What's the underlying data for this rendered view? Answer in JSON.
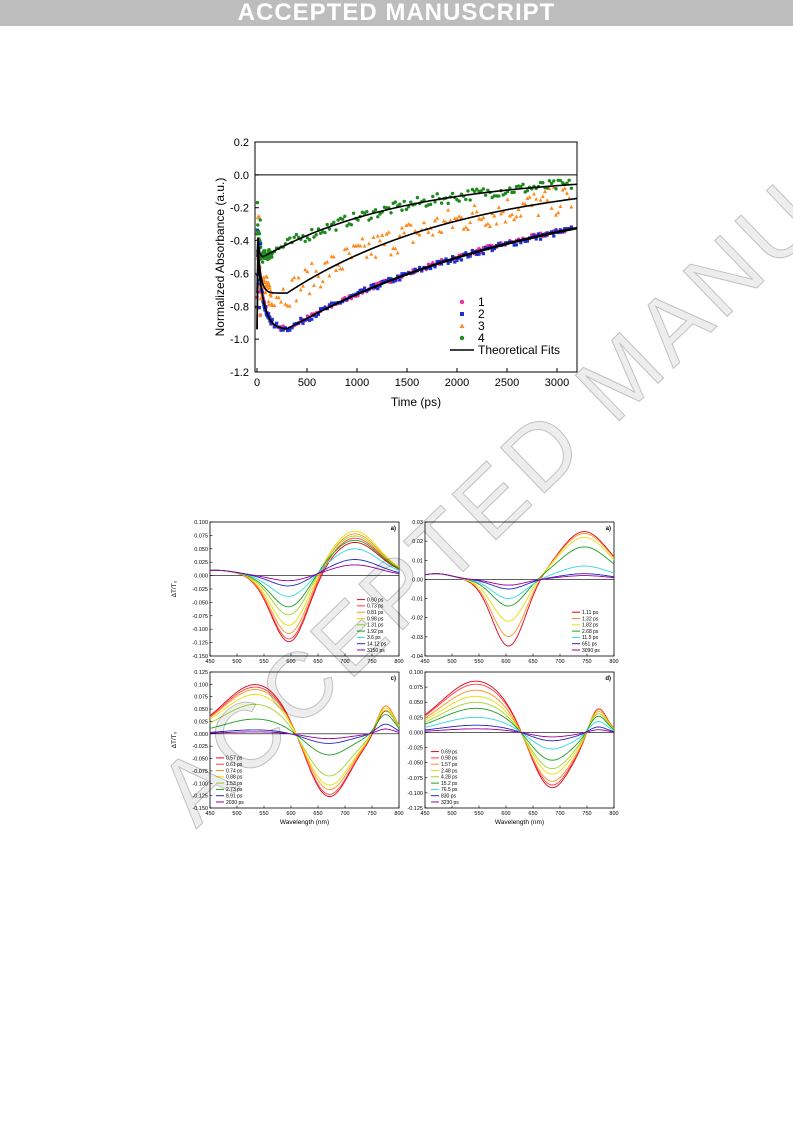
{
  "banner": {
    "text": "ACCEPTED MANUSCRIPT"
  },
  "watermark": {
    "text": "ACCEPTED MANUSCRIPT"
  },
  "chart_data": [
    {
      "id": "main",
      "type": "scatter",
      "xlabel": "Time (ps)",
      "ylabel": "Normalized Absorbance (a.u.)",
      "xlim": [
        -20,
        3200
      ],
      "ylim": [
        -1.2,
        0.2
      ],
      "xticks": [
        0,
        500,
        1000,
        1500,
        2000,
        2500,
        3000
      ],
      "yticks": [
        0.2,
        0.0,
        -0.2,
        -0.4,
        -0.6,
        -0.8,
        -1.0,
        -1.2
      ],
      "ytick_labels": [
        "0.2",
        "0.0",
        "-0.2",
        "-0.4",
        "-0.6",
        "-0.8",
        "-1.0",
        "-1.2"
      ],
      "legend_position": "bottom-right",
      "series": [
        {
          "name": "1",
          "color": "#ee2e9c",
          "marker": "circle",
          "A": 0.94,
          "t0": 60,
          "tmin": 300,
          "rec": 2700,
          "noise": 0.015
        },
        {
          "name": "2",
          "color": "#1f2fd6",
          "marker": "square",
          "A": 0.94,
          "t0": 60,
          "tmin": 300,
          "rec": 2750,
          "noise": 0.02
        },
        {
          "name": "3",
          "color": "#ff8a1e",
          "marker": "triangle",
          "A": 0.72,
          "t0": 30,
          "tmin": 300,
          "rec": 1800,
          "noise": 0.09
        },
        {
          "name": "4",
          "color": "#1e8a1e",
          "marker": "circle",
          "A": 0.5,
          "t0": 12,
          "tmin": 60,
          "rec": 1450,
          "noise": 0.035
        }
      ],
      "fits_label": "Theoretical Fits",
      "fit_color": "#000000"
    },
    {
      "id": "a",
      "type": "line",
      "panel_label": "a)",
      "xlabel": "",
      "ylabel": "ΔT/T₀",
      "xlim": [
        450,
        800
      ],
      "ylim": [
        -0.15,
        0.1
      ],
      "xticks": [
        450,
        500,
        550,
        600,
        650,
        700,
        750,
        800
      ],
      "yticks": [
        0.1,
        0.075,
        0.05,
        0.025,
        0.0,
        -0.025,
        -0.05,
        -0.075,
        -0.1,
        -0.125,
        -0.15
      ],
      "ytick_labels": [
        "0.100",
        "0.075",
        "0.050",
        "0.025",
        "0.000",
        "-0.025",
        "-0.050",
        "-0.075",
        "-0.100",
        "-0.125",
        "-0.150"
      ],
      "gauss": {
        "mu": 597,
        "sigma": 33,
        "mu2": 718,
        "sigma2": 45,
        "base0": 0.01,
        "baseMu": 460,
        "baseSigma": 40
      },
      "legend_position": "bottom-right",
      "series": [
        {
          "name": "0.60 ps",
          "color": "#e0001a",
          "neg": 0.125,
          "pos": 0.062
        },
        {
          "name": "0.73 ps",
          "color": "#ff3a3a",
          "neg": 0.12,
          "pos": 0.07
        },
        {
          "name": "0.81 ps",
          "color": "#ff9020",
          "neg": 0.11,
          "pos": 0.078
        },
        {
          "name": "0.98 ps",
          "color": "#e8e000",
          "neg": 0.095,
          "pos": 0.083
        },
        {
          "name": "1.31 ps",
          "color": "#a2d628",
          "neg": 0.075,
          "pos": 0.074
        },
        {
          "name": "1.92 ps",
          "color": "#1ea01e",
          "neg": 0.06,
          "pos": 0.066
        },
        {
          "name": "3.6 ps",
          "color": "#30d8e0",
          "neg": 0.04,
          "pos": 0.05
        },
        {
          "name": "14.12 ps",
          "color": "#2424c8",
          "neg": 0.02,
          "pos": 0.03
        },
        {
          "name": "3150 ps",
          "color": "#9a009a",
          "neg": 0.01,
          "pos": 0.02
        }
      ]
    },
    {
      "id": "b",
      "type": "line",
      "panel_label": "a)",
      "xlabel": "",
      "ylabel": "",
      "xlim": [
        450,
        800
      ],
      "ylim": [
        -0.04,
        0.03
      ],
      "xticks": [
        450,
        500,
        550,
        600,
        650,
        700,
        750,
        800
      ],
      "yticks": [
        0.03,
        0.02,
        0.01,
        0.0,
        -0.01,
        -0.02,
        -0.03,
        -0.04
      ],
      "ytick_labels": [
        "0.03",
        "0.02",
        "0.01",
        "0.00",
        "-0.01",
        "-0.02",
        "-0.03",
        "-0.04"
      ],
      "gauss": {
        "mu": 605,
        "sigma": 30,
        "mu2": 745,
        "sigma2": 45,
        "base0": 0.003,
        "baseMu": 470,
        "baseSigma": 30
      },
      "legend_position": "bottom-right",
      "series": [
        {
          "name": "1.11 ps",
          "color": "#e0001a",
          "neg": 0.035,
          "pos": 0.025
        },
        {
          "name": "1.32 ps",
          "color": "#ff9020",
          "neg": 0.03,
          "pos": 0.024
        },
        {
          "name": "1.82 ps",
          "color": "#e8e000",
          "neg": 0.022,
          "pos": 0.022
        },
        {
          "name": "2.68 ps",
          "color": "#1ea01e",
          "neg": 0.014,
          "pos": 0.017
        },
        {
          "name": "11.5 ps",
          "color": "#30d8e0",
          "neg": 0.01,
          "pos": 0.007
        },
        {
          "name": "651 ps",
          "color": "#2424c8",
          "neg": 0.005,
          "pos": 0.003
        },
        {
          "name": "3090 ps",
          "color": "#9a009a",
          "neg": 0.003,
          "pos": 0.002
        }
      ]
    },
    {
      "id": "c",
      "type": "line",
      "panel_label": "c)",
      "xlabel": "Wavelength (nm)",
      "ylabel": "ΔT/T₀",
      "xlim": [
        450,
        800
      ],
      "ylim": [
        -0.15,
        0.125
      ],
      "xticks": [
        450,
        500,
        550,
        600,
        650,
        700,
        750,
        800
      ],
      "yticks": [
        0.125,
        0.1,
        0.075,
        0.05,
        0.025,
        0.0,
        -0.025,
        -0.05,
        -0.075,
        -0.1,
        -0.125,
        -0.15
      ],
      "ytick_labels": [
        "0.125",
        "0.100",
        "0.075",
        "0.050",
        "0.025",
        "0.000",
        "-0.025",
        "-0.050",
        "-0.075",
        "-0.100",
        "-0.125",
        "-0.150"
      ],
      "gauss": {
        "mu": 668,
        "sigma": 40,
        "mu2": 535,
        "sigma2": 60,
        "mu3": 775,
        "sigma3": 16
      },
      "legend_position": "bottom-left",
      "series": [
        {
          "name": "0.57 ps",
          "color": "#e0001a",
          "neg": 0.135,
          "pos": 0.1,
          "tail": 0.05
        },
        {
          "name": "0.61 ps",
          "color": "#ff3a3a",
          "neg": 0.13,
          "pos": 0.095,
          "tail": 0.06
        },
        {
          "name": "0.74 ps",
          "color": "#ff9020",
          "neg": 0.12,
          "pos": 0.09,
          "tail": 0.06
        },
        {
          "name": "0.88 ps",
          "color": "#e8e000",
          "neg": 0.11,
          "pos": 0.08,
          "tail": 0.055
        },
        {
          "name": "1.53 ps",
          "color": "#a2d628",
          "neg": 0.09,
          "pos": 0.06,
          "tail": 0.05
        },
        {
          "name": "2.73 ps",
          "color": "#1ea01e",
          "neg": 0.045,
          "pos": 0.03,
          "tail": 0.04
        },
        {
          "name": "8.91 ps",
          "color": "#2424c8",
          "neg": 0.02,
          "pos": 0.008,
          "tail": 0.02
        },
        {
          "name": "2030 ps",
          "color": "#9a009a",
          "neg": 0.01,
          "pos": 0.004,
          "tail": 0.01
        }
      ]
    },
    {
      "id": "d",
      "type": "line",
      "panel_label": "d)",
      "xlabel": "Wavelength (nm)",
      "ylabel": "",
      "xlim": [
        450,
        800
      ],
      "ylim": [
        -0.125,
        0.1
      ],
      "xticks": [
        450,
        500,
        550,
        600,
        650,
        700,
        750,
        800
      ],
      "yticks": [
        0.1,
        0.075,
        0.05,
        0.025,
        0.0,
        -0.025,
        -0.05,
        -0.075,
        -0.1,
        -0.125
      ],
      "ytick_labels": [
        "0.100",
        "0.075",
        "0.050",
        "0.025",
        "0.000",
        "-0.025",
        "-0.050",
        "-0.075",
        "-0.100",
        "-0.125"
      ],
      "gauss": {
        "mu": 682,
        "sigma": 38,
        "mu2": 545,
        "sigma2": 65,
        "mu3": 770,
        "sigma3": 16
      },
      "legend_position": "bottom-left",
      "series": [
        {
          "name": "0.69 ps",
          "color": "#e0001a",
          "neg": 0.1,
          "pos": 0.085,
          "tail": 0.045
        },
        {
          "name": "0.98 ps",
          "color": "#ff3a3a",
          "neg": 0.095,
          "pos": 0.08,
          "tail": 0.045
        },
        {
          "name": "1.57 ps",
          "color": "#ff9020",
          "neg": 0.088,
          "pos": 0.07,
          "tail": 0.04
        },
        {
          "name": "2.48 ps",
          "color": "#e8e000",
          "neg": 0.075,
          "pos": 0.06,
          "tail": 0.04
        },
        {
          "name": "4.28 ps",
          "color": "#a2d628",
          "neg": 0.065,
          "pos": 0.05,
          "tail": 0.035
        },
        {
          "name": "15.2 ps",
          "color": "#1ea01e",
          "neg": 0.05,
          "pos": 0.04,
          "tail": 0.03
        },
        {
          "name": "76.5 ps",
          "color": "#30d8e0",
          "neg": 0.03,
          "pos": 0.025,
          "tail": 0.02
        },
        {
          "name": "830 ps",
          "color": "#2424c8",
          "neg": 0.015,
          "pos": 0.012,
          "tail": 0.01
        },
        {
          "name": "3230 ps",
          "color": "#9a009a",
          "neg": 0.008,
          "pos": 0.006,
          "tail": 0.005
        }
      ]
    }
  ]
}
